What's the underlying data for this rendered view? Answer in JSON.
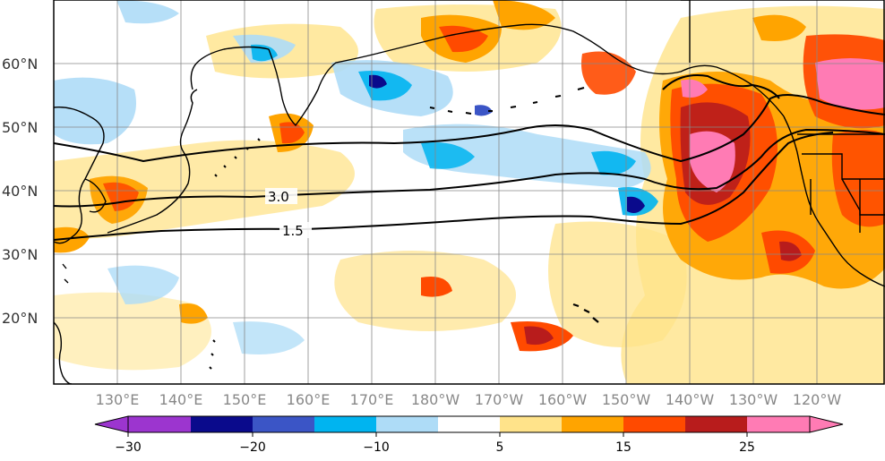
{
  "map": {
    "lat_labels": [
      "60°N",
      "50°N",
      "40°N",
      "30°N",
      "20°N"
    ],
    "lon_labels": [
      "130°E",
      "140°E",
      "150°E",
      "160°E",
      "170°E",
      "180°W",
      "170°W",
      "160°W",
      "150°W",
      "140°W",
      "130°W",
      "120°W"
    ],
    "contour_labels": [
      "3.0",
      "1.5"
    ]
  },
  "colorbar": {
    "tick_labels": [
      "−30",
      "−20",
      "−10",
      "5",
      "15",
      "25"
    ],
    "colors": [
      "#9c35cf",
      "#0a0a8c",
      "#3b55c6",
      "#00b4f0",
      "#aedcf7",
      "#ffffff",
      "#ffe38a",
      "#ffa400",
      "#ff4a00",
      "#b81c1c",
      "#ff7bb4"
    ]
  }
}
